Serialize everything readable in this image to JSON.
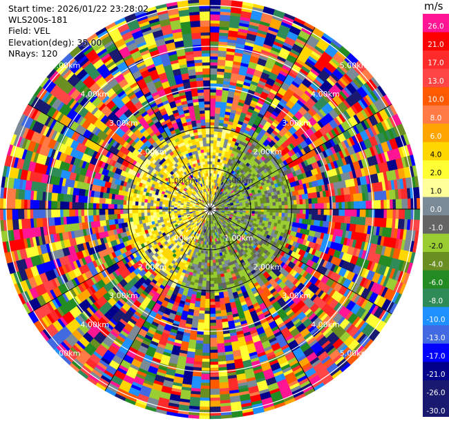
{
  "header": {
    "start_time": "Start time: 2026/01/22 23:28:02",
    "station": "WLS200s-181",
    "field": "Field: VEL",
    "elevation": "Elevation(deg): 35.00",
    "nrays": "NRays: 120"
  },
  "range_rings": {
    "labels": [
      "1.00km",
      "2.00km",
      "3.00km",
      "4.00km",
      "5.00km"
    ],
    "max_label": "5.00km"
  },
  "colorbar": {
    "unit": "m/s",
    "ticks": [
      "26.0",
      "21.0",
      "17.0",
      "13.0",
      "10.0",
      "8.0",
      "6.0",
      "4.0",
      "2.0",
      "1.0",
      "0.0",
      "-1.0",
      "-2.0",
      "-4.0",
      "-6.0",
      "-8.0",
      "-10.0",
      "-13.0",
      "-17.0",
      "-21.0",
      "-26.0",
      "-30.0"
    ],
    "colors": [
      "#ff1493",
      "#ff0000",
      "#ff2a2a",
      "#ff4545",
      "#ff5a00",
      "#ff7a45",
      "#ffa500",
      "#ffd700",
      "#ffff33",
      "#ffff99",
      "#7a8a96",
      "#646464",
      "#9acd32",
      "#6b8e23",
      "#228b22",
      "#2e8b57",
      "#1e90ff",
      "#4169e1",
      "#0000ff",
      "#00008b",
      "#191970",
      "#191970"
    ]
  }
}
